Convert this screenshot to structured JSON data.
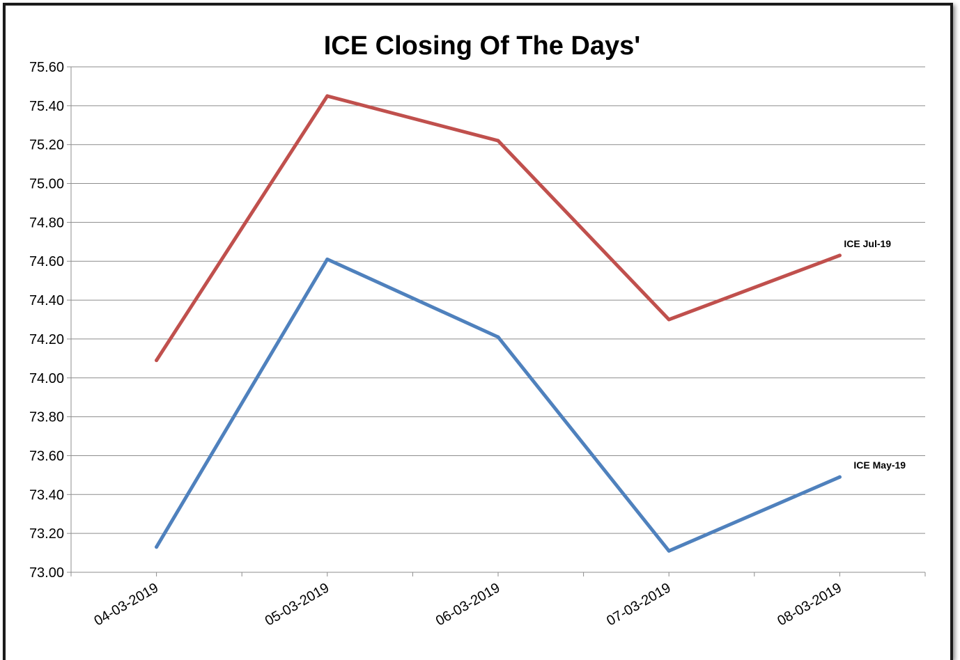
{
  "chart_data": {
    "type": "line",
    "title": "ICE Closing Of The Days'",
    "xlabel": "",
    "ylabel": "",
    "categories": [
      "04-03-2019",
      "05-03-2019",
      "06-03-2019",
      "07-03-2019",
      "08-03-2019"
    ],
    "ylim": [
      73.0,
      75.6
    ],
    "yticks": [
      "73.00",
      "73.20",
      "73.40",
      "73.60",
      "73.80",
      "74.00",
      "74.20",
      "74.40",
      "74.60",
      "74.80",
      "75.00",
      "75.20",
      "75.40",
      "75.60"
    ],
    "grid": true,
    "legend": "none (series labeled at line ends)",
    "series": [
      {
        "name": "ICE Jul-19",
        "color": "#c0504d",
        "values": [
          74.09,
          75.45,
          75.22,
          74.3,
          74.63
        ]
      },
      {
        "name": "ICE May-19",
        "color": "#4f81bd",
        "values": [
          73.13,
          74.61,
          74.21,
          73.11,
          73.49
        ]
      }
    ]
  }
}
